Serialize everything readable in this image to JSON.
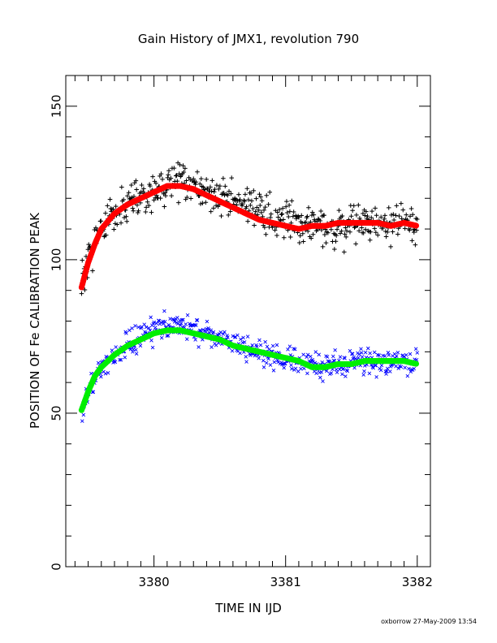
{
  "page": {
    "footer": "oxborrow 27-May-2009 13:54"
  },
  "chart_data": {
    "type": "scatter",
    "title": "Gain History of JMX1, revolution 790",
    "xlabel": "TIME IN IJD",
    "ylabel": "POSITION OF Fe CALIBRATION PEAK",
    "xlim": [
      3379.33,
      3382.1
    ],
    "ylim": [
      0,
      160
    ],
    "xticks": [
      3380,
      3381,
      3382
    ],
    "xtick_labels": [
      "3380",
      "3381",
      "3382"
    ],
    "yticks": [
      0,
      50,
      100,
      150
    ],
    "ytick_labels": [
      "0",
      "50",
      "100",
      "150"
    ],
    "grid": false,
    "legend": "none",
    "series": [
      {
        "marker": "plus",
        "color": "#000000",
        "anchors_x": [
          3379.45,
          3379.5,
          3379.55,
          3379.6,
          3379.7,
          3379.8,
          3379.9,
          3380.0,
          3380.1,
          3380.2,
          3380.3,
          3380.4,
          3380.5,
          3380.6,
          3380.7,
          3380.8,
          3380.9,
          3381.0,
          3381.1,
          3381.2,
          3381.3,
          3381.4,
          3381.5,
          3381.6,
          3381.7,
          3381.8,
          3381.9,
          3382.0
        ],
        "anchors_y": [
          92,
          100,
          106,
          110,
          115,
          118,
          120,
          123,
          125,
          126,
          124,
          122,
          121,
          119,
          118,
          116,
          114,
          112,
          111,
          110,
          109,
          110,
          112,
          112,
          111,
          112,
          112,
          112
        ],
        "scatter": 4.2
      },
      {
        "marker": "line",
        "color": "#ff0000",
        "x": [
          3379.45,
          3379.5,
          3379.55,
          3379.6,
          3379.7,
          3379.8,
          3379.9,
          3380.0,
          3380.1,
          3380.2,
          3380.3,
          3380.4,
          3380.5,
          3380.6,
          3380.7,
          3380.8,
          3380.9,
          3381.0,
          3381.1,
          3381.2,
          3381.3,
          3381.4,
          3381.5,
          3381.6,
          3381.7,
          3381.8,
          3381.9,
          3382.0
        ],
        "y": [
          91,
          99,
          105,
          110,
          115,
          118,
          120,
          122,
          124,
          124,
          123,
          121,
          119,
          117,
          115,
          113,
          112,
          111,
          110,
          111,
          111,
          112,
          112,
          112,
          112,
          111,
          112,
          111
        ]
      },
      {
        "marker": "cross",
        "color": "#0000ff",
        "anchors_x": [
          3379.45,
          3379.5,
          3379.55,
          3379.6,
          3379.7,
          3379.8,
          3379.9,
          3380.0,
          3380.1,
          3380.2,
          3380.3,
          3380.4,
          3380.5,
          3380.6,
          3380.7,
          3380.8,
          3380.9,
          3381.0,
          3381.1,
          3381.2,
          3381.3,
          3381.4,
          3381.5,
          3381.6,
          3381.7,
          3381.8,
          3381.9,
          3382.0
        ],
        "anchors_y": [
          51,
          57,
          62,
          65,
          69,
          72,
          75,
          77,
          79,
          79,
          77,
          76,
          74,
          73,
          71,
          70,
          69,
          67,
          66,
          65,
          65,
          66,
          66,
          67,
          66,
          66,
          66,
          66
        ],
        "scatter": 3.0
      },
      {
        "marker": "line",
        "color": "#00ee00",
        "x": [
          3379.45,
          3379.5,
          3379.55,
          3379.6,
          3379.7,
          3379.8,
          3379.9,
          3380.0,
          3380.1,
          3380.2,
          3380.3,
          3380.4,
          3380.5,
          3380.6,
          3380.7,
          3380.8,
          3380.9,
          3381.0,
          3381.1,
          3381.2,
          3381.3,
          3381.4,
          3381.5,
          3381.6,
          3381.7,
          3381.8,
          3381.9,
          3382.0
        ],
        "y": [
          51,
          57,
          62,
          65,
          69,
          72,
          74,
          76,
          77,
          77,
          76,
          75,
          74,
          72,
          71,
          70,
          69,
          68,
          67,
          65,
          65,
          66,
          66,
          67,
          67,
          67,
          67,
          66
        ]
      }
    ]
  }
}
